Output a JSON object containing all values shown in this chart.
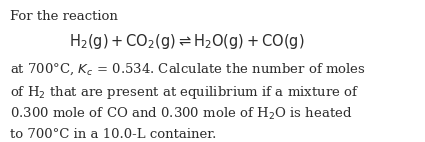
{
  "background_color": "#ffffff",
  "text_color": "#2b2b2b",
  "title_line": "For the reaction",
  "eq_line": "$\\mathrm{H_2(g) + CO_2(g) \\rightleftharpoons H_2O(g) + CO(g)}$",
  "body_line0": "at 700°C, $K_c$ = 0.534. Calculate the number of moles",
  "body_line1": "of H$_2$ that are present at equilibrium if a mixture of",
  "body_line2": "0.300 mole of CO and 0.300 mole of H$_2$O is heated",
  "body_line3": "to 700°C in a 10.0-L container.",
  "font_size_title": 9.5,
  "font_size_eq": 10.5,
  "font_size_body": 9.5,
  "fig_width": 4.25,
  "fig_height": 1.42,
  "dpi": 100
}
